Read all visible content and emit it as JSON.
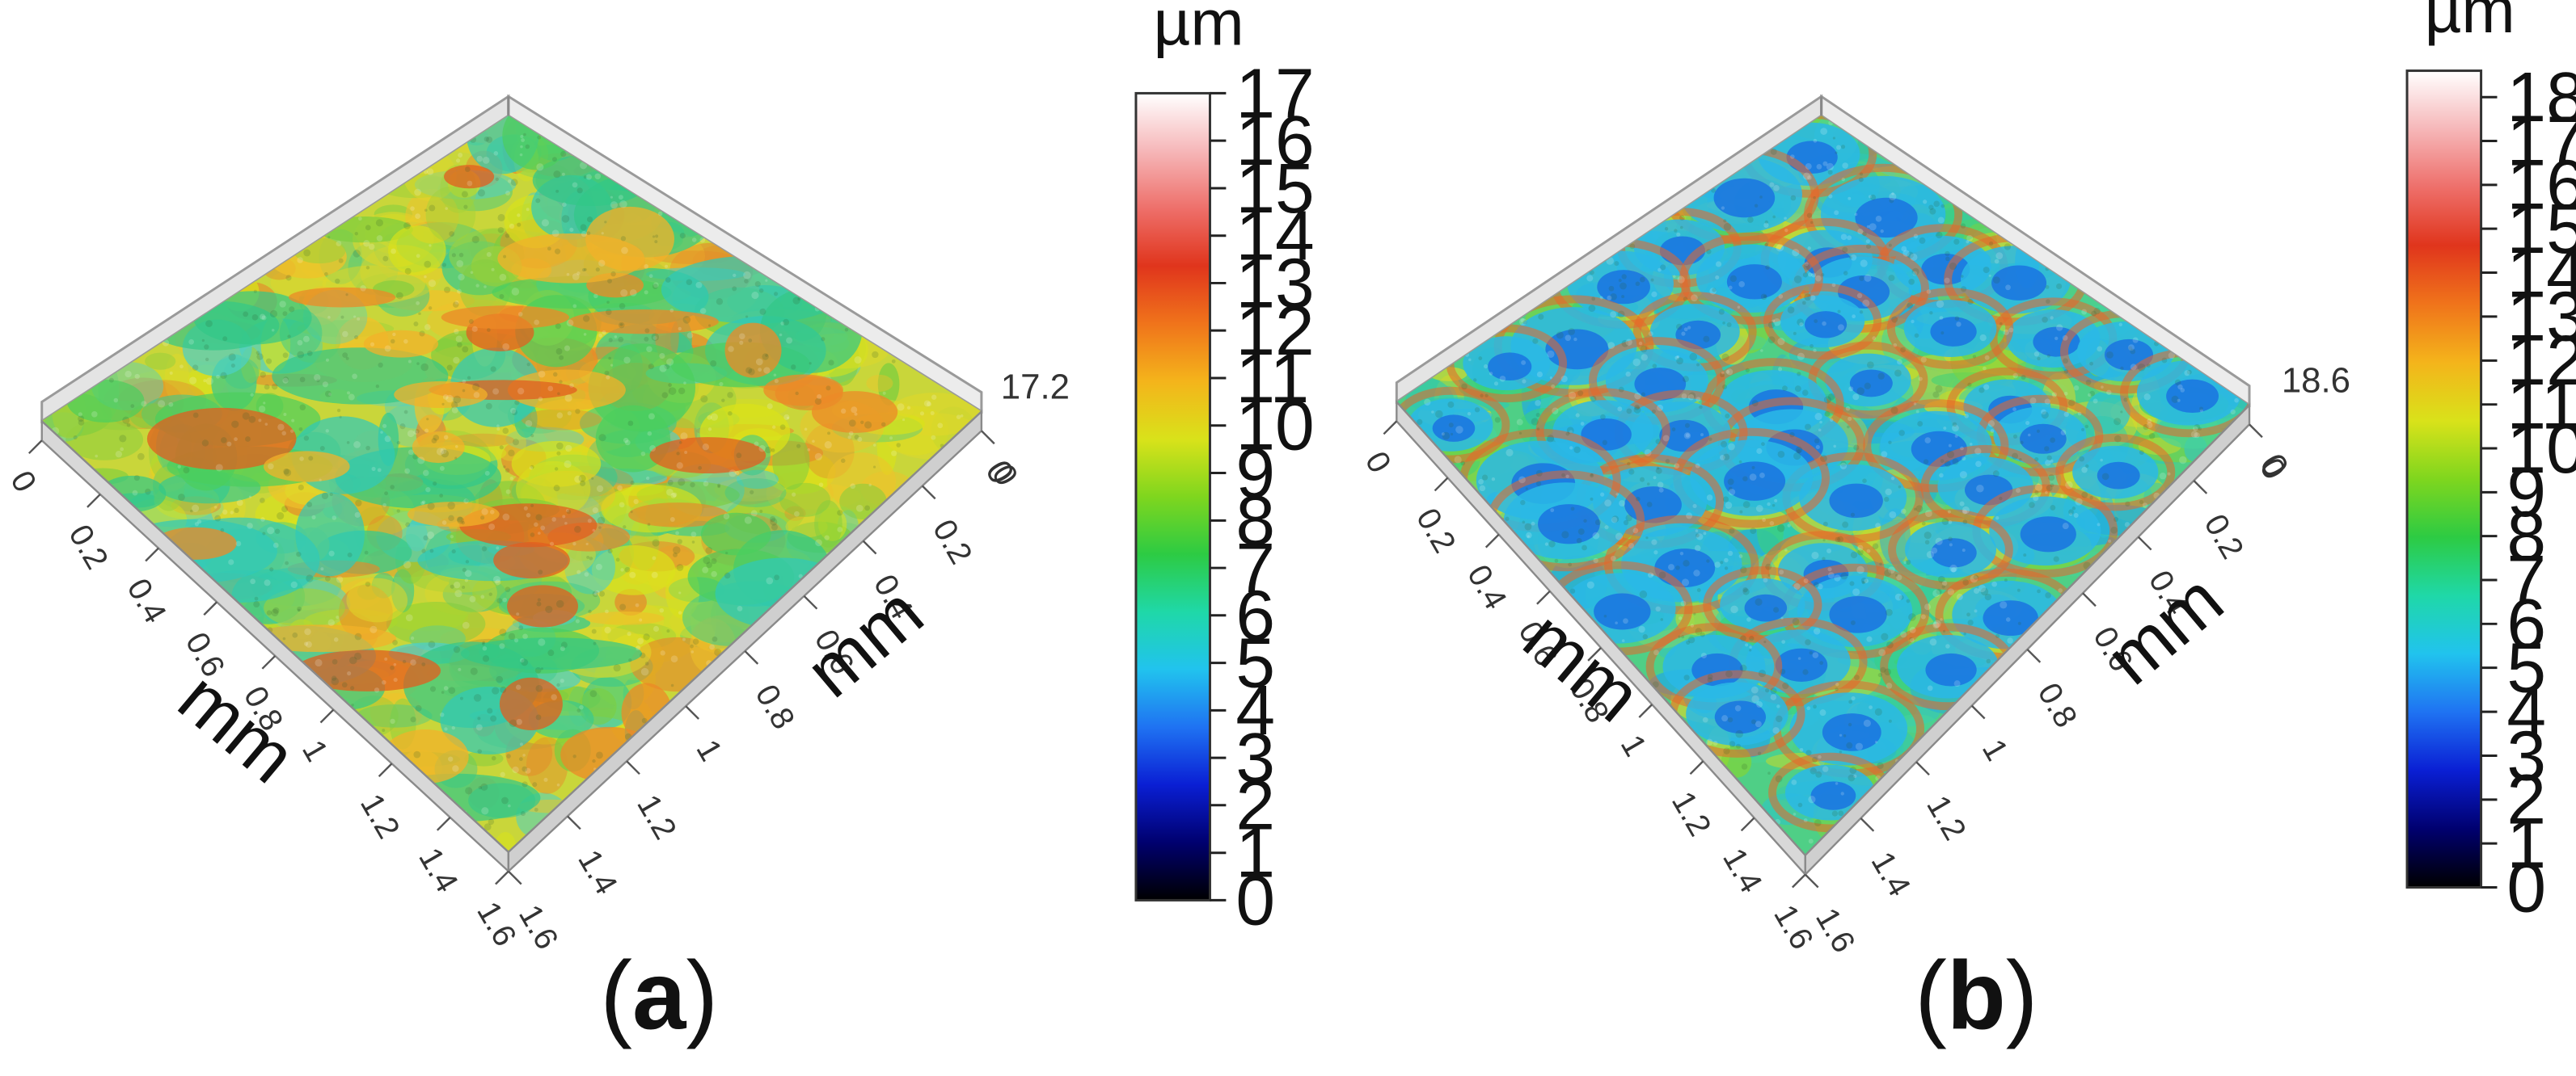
{
  "colormap": [
    "#000000",
    "#00006e",
    "#0a1fd4",
    "#1f72f2",
    "#21c3ee",
    "#1fd8a8",
    "#2dcb43",
    "#7fd61e",
    "#d9e21a",
    "#f4b41b",
    "#f0741b",
    "#e0351c",
    "#ee6f6a",
    "#f6b7b9",
    "#ffffff"
  ],
  "chart_data": [
    {
      "type": "heatmap",
      "panel_label": "a",
      "panel_prefix": "(",
      "panel_suffix": ")",
      "surface": "3D surface topography",
      "x_axis": {
        "label": "mm",
        "ticks": [
          "0",
          "0.2",
          "0.4",
          "0.6",
          "0.8",
          "1",
          "1.2",
          "1.4",
          "1.6"
        ],
        "range": [
          0,
          1.6
        ]
      },
      "y_axis": {
        "label": "mm",
        "ticks": [
          "0",
          "0.2",
          "0.4",
          "0.6",
          "0.8",
          "1",
          "1.2",
          "1.4",
          "1.6"
        ],
        "range": [
          0,
          1.6
        ]
      },
      "z_axis": {
        "ticks": [
          "0",
          "17.2"
        ],
        "range": [
          0,
          17.2
        ]
      },
      "colorbar": {
        "unit": "µm",
        "range": [
          0,
          17
        ],
        "ticks": [
          "0",
          "1",
          "2",
          "3",
          "4",
          "5",
          "6",
          "7",
          "8",
          "9",
          "10",
          "11",
          "12",
          "13",
          "14",
          "15",
          "16",
          "17"
        ]
      }
    },
    {
      "type": "heatmap",
      "panel_label": "b",
      "panel_prefix": "(",
      "panel_suffix": ")",
      "surface": "3D surface topography",
      "x_axis": {
        "label": "mm",
        "ticks": [
          "0",
          "0.2",
          "0.4",
          "0.6",
          "0.8",
          "1",
          "1.2",
          "1.4",
          "1.6"
        ],
        "range": [
          0,
          1.6
        ]
      },
      "y_axis": {
        "label": "mm",
        "ticks": [
          "0",
          "0.2",
          "0.4",
          "0.6",
          "0.8",
          "1",
          "1.2",
          "1.4",
          "1.6"
        ],
        "range": [
          0,
          1.6
        ]
      },
      "z_axis": {
        "ticks": [
          "0",
          "18.6"
        ],
        "range": [
          0,
          18.6
        ]
      },
      "colorbar": {
        "unit": "µm",
        "range": [
          0,
          18.6
        ],
        "ticks": [
          "0",
          "1",
          "2",
          "3",
          "4",
          "5",
          "6",
          "7",
          "8",
          "9",
          "10",
          "11",
          "12",
          "13",
          "14",
          "15",
          "16",
          "17",
          "18"
        ]
      }
    }
  ]
}
